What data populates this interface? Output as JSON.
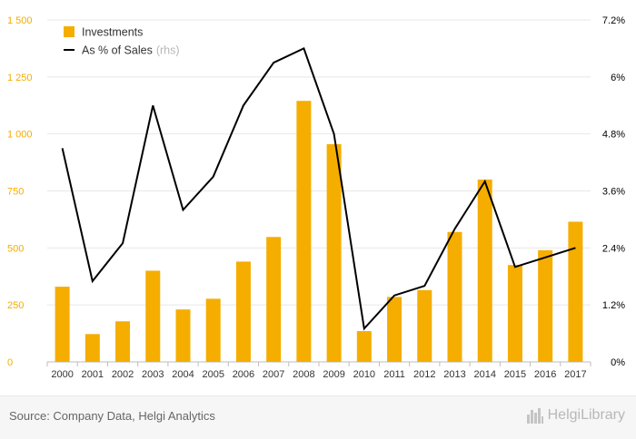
{
  "chart_data": {
    "type": "bar+line",
    "categories": [
      "2000",
      "2001",
      "2002",
      "2003",
      "2004",
      "2005",
      "2006",
      "2007",
      "2008",
      "2009",
      "2010",
      "2011",
      "2012",
      "2013",
      "2014",
      "2015",
      "2016",
      "2017"
    ],
    "series": [
      {
        "name": "Investments",
        "type": "bar",
        "axis": "left",
        "color": "#f5ad00",
        "values": [
          330,
          122,
          178,
          400,
          230,
          277,
          440,
          548,
          1145,
          955,
          135,
          285,
          315,
          570,
          800,
          425,
          490,
          615
        ]
      },
      {
        "name": "As % of Sales",
        "name_suffix": "(rhs)",
        "type": "line",
        "axis": "right",
        "color": "#000000",
        "values": [
          4.5,
          1.7,
          2.5,
          5.4,
          3.2,
          3.9,
          5.4,
          6.3,
          6.6,
          4.8,
          0.7,
          1.4,
          1.6,
          2.8,
          3.8,
          2.0,
          2.2,
          2.4
        ]
      }
    ],
    "y_left": {
      "min": 0,
      "max": 1500,
      "ticks": [
        0,
        250,
        500,
        750,
        1000,
        1250,
        1500
      ],
      "tick_labels": [
        "0",
        "250",
        "500",
        "750",
        "1 000",
        "1 250",
        "1 500"
      ],
      "color": "#f5ad00"
    },
    "y_right": {
      "min": 0,
      "max": 7.2,
      "ticks": [
        0,
        1.2,
        2.4,
        3.6,
        4.8,
        6,
        7.2
      ],
      "tick_labels": [
        "0%",
        "1.2%",
        "2.4%",
        "3.6%",
        "4.8%",
        "6%",
        "7.2%"
      ]
    },
    "legend_position": "top-left",
    "grid": "horizontal"
  },
  "footer": {
    "source": "Source: Company Data, Helgi Analytics",
    "logo_text": "HelgiLibrary"
  }
}
